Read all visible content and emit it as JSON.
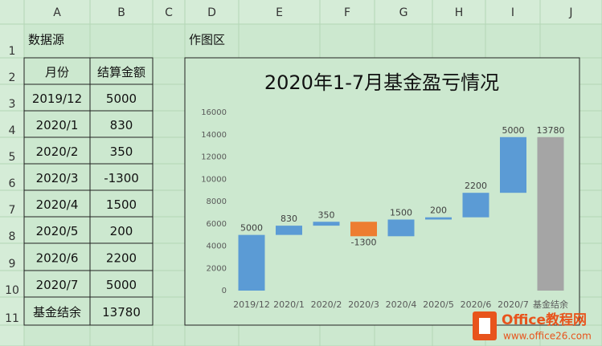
{
  "sheet": {
    "columns": [
      "A",
      "B",
      "C",
      "D",
      "E",
      "F",
      "G",
      "H",
      "I",
      "J"
    ],
    "row_numbers": [
      1,
      2,
      3,
      4,
      5,
      6,
      7,
      8,
      9,
      10,
      11
    ],
    "source_title": "数据源",
    "chart_area_title": "作图区",
    "rows": [
      [
        "月份",
        "结算金额"
      ],
      [
        "2019/12",
        5000
      ],
      [
        "2020/1",
        830
      ],
      [
        "2020/2",
        350
      ],
      [
        "2020/3",
        -1300
      ],
      [
        "2020/4",
        1500
      ],
      [
        "2020/5",
        200
      ],
      [
        "2020/6",
        2200
      ],
      [
        "2020/7",
        5000
      ],
      [
        "基金结余",
        13780
      ]
    ]
  },
  "chart_data": {
    "type": "waterfall",
    "title": "2020年1-7月基金盈亏情况",
    "categories": [
      "2019/12",
      "2020/1",
      "2020/2",
      "2020/3",
      "2020/4",
      "2020/5",
      "2020/6",
      "2020/7",
      "基金结余"
    ],
    "values": [
      5000,
      830,
      350,
      -1300,
      1500,
      200,
      2200,
      5000,
      13780
    ],
    "is_total": [
      false,
      false,
      false,
      false,
      false,
      false,
      false,
      false,
      true
    ],
    "colors": {
      "increase": "#5b9bd5",
      "decrease": "#ed7d31",
      "total": "#a5a5a5"
    },
    "ylim": [
      0,
      16000
    ],
    "yticks": [
      0,
      2000,
      4000,
      6000,
      8000,
      10000,
      12000,
      14000,
      16000
    ],
    "grid": false
  },
  "watermark": {
    "brand": "Office教程网",
    "url": "www.office26.com"
  }
}
